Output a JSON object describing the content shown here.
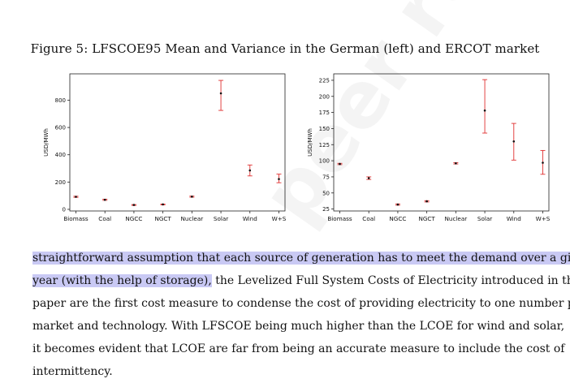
{
  "caption": "Figure 5: LFSCOE95 Mean and Variance in the German (left) and ERCOT market",
  "watermark": "peer reviewed",
  "chart_data": [
    {
      "type": "scatter",
      "name": "German",
      "categories": [
        "Biomass",
        "Coal",
        "NGCC",
        "NGCT",
        "Nuclear",
        "Solar",
        "Wind",
        "W+S"
      ],
      "mean": [
        92,
        70,
        32,
        36,
        93,
        850,
        285,
        222
      ],
      "low": [
        88,
        66,
        29,
        33,
        89,
        725,
        245,
        195
      ],
      "high": [
        96,
        74,
        35,
        39,
        97,
        945,
        325,
        258
      ],
      "ylabel": "USD/MWh",
      "yticks": [
        0,
        200,
        400,
        600,
        800
      ],
      "ylim": [
        -12,
        993
      ]
    },
    {
      "type": "scatter",
      "name": "ERCOT",
      "categories": [
        "Biomass",
        "Coal",
        "NGCC",
        "NGCT",
        "Nuclear",
        "Solar",
        "Wind",
        "W+S"
      ],
      "mean": [
        95,
        73,
        32,
        37,
        96,
        178,
        130,
        97
      ],
      "low": [
        94,
        71,
        31,
        36,
        95,
        143,
        101,
        79
      ],
      "high": [
        96,
        75,
        33,
        38,
        97,
        226,
        158,
        116
      ],
      "ylabel": "USD/MWh",
      "yticks": [
        25,
        50,
        75,
        100,
        125,
        150,
        175,
        200,
        225
      ],
      "ylim": [
        22,
        235
      ]
    }
  ],
  "paragraph": {
    "lines": [
      {
        "hl": "straightforward assumption that each source of generation has to meet the demand over a given",
        "rest": ""
      },
      {
        "hl": "year (with the help of storage),",
        "rest": " the Levelized Full System Costs of Electricity introduced in this"
      },
      {
        "hl": "",
        "rest": "paper are the first cost measure to condense the cost of providing electricity to one number per"
      },
      {
        "hl": "",
        "rest": "market and technology. With LFSCOE being much higher than the LCOE for wind and solar,"
      },
      {
        "hl": "",
        "rest": "it becomes evident that LCOE are far from being an accurate measure to include the cost of"
      },
      {
        "hl": "",
        "rest": "intermittency."
      }
    ]
  }
}
